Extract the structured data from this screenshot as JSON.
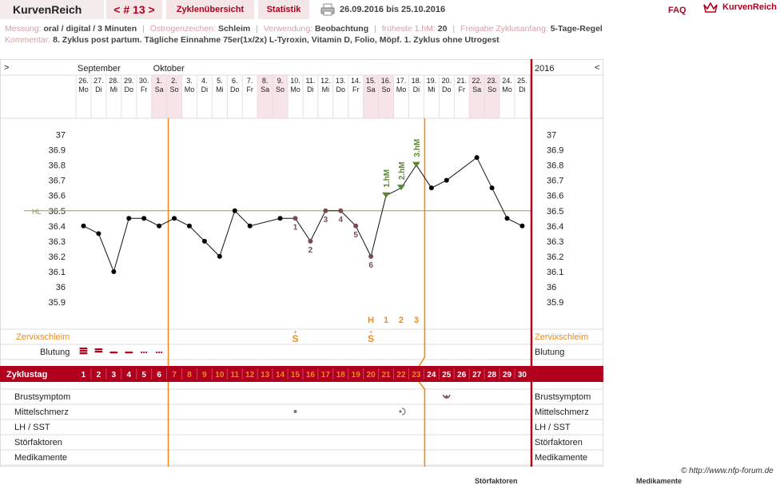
{
  "header": {
    "brand": "KurvenReich",
    "cycle_nav": "< # 13 >",
    "tab_overview": "Zyklenübersicht",
    "tab_stats": "Statistik",
    "date_range": "26.09.2016 bis 25.10.2016",
    "faq": "FAQ",
    "logo_text": "KurvenReich"
  },
  "info": {
    "messung_label": "Messung:",
    "messung_value": "oral / digital / 3 Minuten",
    "oestrogen_label": "Östrogenzeichen:",
    "oestrogen_value": "Schleim",
    "verwendung_label": "Verwendung:",
    "verwendung_value": "Beobachtung",
    "fhm_label": "früheste 1.hM:",
    "fhm_value": "20",
    "freigabe_label": "Freigabe Zyklusanfang:",
    "freigabe_value": "5-Tage-Regel",
    "kommentar_label": "Kommentar:",
    "kommentar_value": "8. Zyklus post partum. Tägliche Einnahme 75er(1x/2x) L-Tyroxin, Vitamin D, Folio, Möpf. 1. Zyklus ohne Utrogest"
  },
  "chart_data": {
    "type": "line",
    "nav_left": ">",
    "nav_right": "<",
    "year": "2016",
    "months": [
      {
        "label": "September",
        "start_index": 0
      },
      {
        "label": "Oktober",
        "start_index": 5
      }
    ],
    "dates": [
      "26.",
      "27.",
      "28.",
      "29.",
      "30.",
      "1.",
      "2.",
      "3.",
      "4.",
      "5.",
      "6.",
      "7.",
      "8.",
      "9.",
      "10.",
      "11.",
      "12.",
      "13.",
      "14.",
      "15.",
      "16.",
      "17.",
      "18.",
      "19.",
      "20.",
      "21.",
      "22.",
      "23.",
      "24.",
      "25."
    ],
    "weekdays": [
      "Mo",
      "Di",
      "Mi",
      "Do",
      "Fr",
      "Sa",
      "So",
      "Mo",
      "Di",
      "Mi",
      "Do",
      "Fr",
      "Sa",
      "So",
      "Mo",
      "Di",
      "Mi",
      "Do",
      "Fr",
      "Sa",
      "So",
      "Mo",
      "Di",
      "Mi",
      "Do",
      "Fr",
      "Sa",
      "So",
      "Mo",
      "Di"
    ],
    "cycle_days": [
      "1",
      "2",
      "3",
      "4",
      "5",
      "6",
      "7",
      "8",
      "9",
      "10",
      "11",
      "12",
      "13",
      "14",
      "15",
      "16",
      "17",
      "18",
      "19",
      "20",
      "21",
      "22",
      "23",
      "24",
      "25",
      "26",
      "27",
      "28",
      "29",
      "30"
    ],
    "temperatures": [
      36.4,
      36.35,
      36.1,
      36.45,
      36.45,
      36.4,
      36.45,
      36.4,
      36.3,
      36.2,
      36.5,
      36.4,
      null,
      36.45,
      36.45,
      36.3,
      36.5,
      36.5,
      36.4,
      36.2,
      36.6,
      36.65,
      36.8,
      36.65,
      36.7,
      null,
      36.85,
      36.65,
      36.45,
      36.4
    ],
    "low_labels": [
      {
        "day_index": 14,
        "label": "1"
      },
      {
        "day_index": 15,
        "label": "2"
      },
      {
        "day_index": 16,
        "label": "3"
      },
      {
        "day_index": 17,
        "label": "4"
      },
      {
        "day_index": 18,
        "label": "5"
      },
      {
        "day_index": 19,
        "label": "6"
      }
    ],
    "high_labels": [
      {
        "day_index": 20,
        "label": "1.hM"
      },
      {
        "day_index": 21,
        "label": "2.hM"
      },
      {
        "day_index": 22,
        "label": "3.hM"
      }
    ],
    "hl_label": "HL",
    "hl_value": 36.5,
    "ylim": [
      35.8,
      37.05
    ],
    "yticks": [
      "37",
      "36.9",
      "36.8",
      "36.7",
      "36.6",
      "36.5",
      "36.4",
      "36.3",
      "36.2",
      "36.1",
      "36",
      "35.9"
    ],
    "peak_markers": [
      {
        "day_index": 19,
        "label": "H"
      },
      {
        "day_index": 20,
        "label": "1"
      },
      {
        "day_index": 21,
        "label": "2"
      },
      {
        "day_index": 22,
        "label": "3"
      }
    ],
    "cervix_label": "Zervixschleim",
    "cervix_marks": [
      {
        "day_index": 14,
        "label": "S"
      },
      {
        "day_index": 19,
        "label": "S"
      }
    ],
    "bleeding_label": "Blutung",
    "cycle_label": "Zyklustag",
    "symptom_rows": [
      "Brustsymptom",
      "Mittelschmerz",
      "LH / SST",
      "Störfaktoren",
      "Medikamente"
    ],
    "weekend_indices": [
      5,
      6,
      12,
      13,
      19,
      20,
      26,
      27
    ],
    "colors": {
      "accent": "#b0001e",
      "orange": "#f08a1c",
      "hl": "#8aa640",
      "high": "#5a8a30",
      "low": "#7a4a52",
      "weekend": "#f6e4e8"
    }
  },
  "footer": {
    "copyright": "© http://www.nfp-forum.de",
    "clip_left": "Störfaktoren",
    "clip_right": "Medikamente"
  }
}
